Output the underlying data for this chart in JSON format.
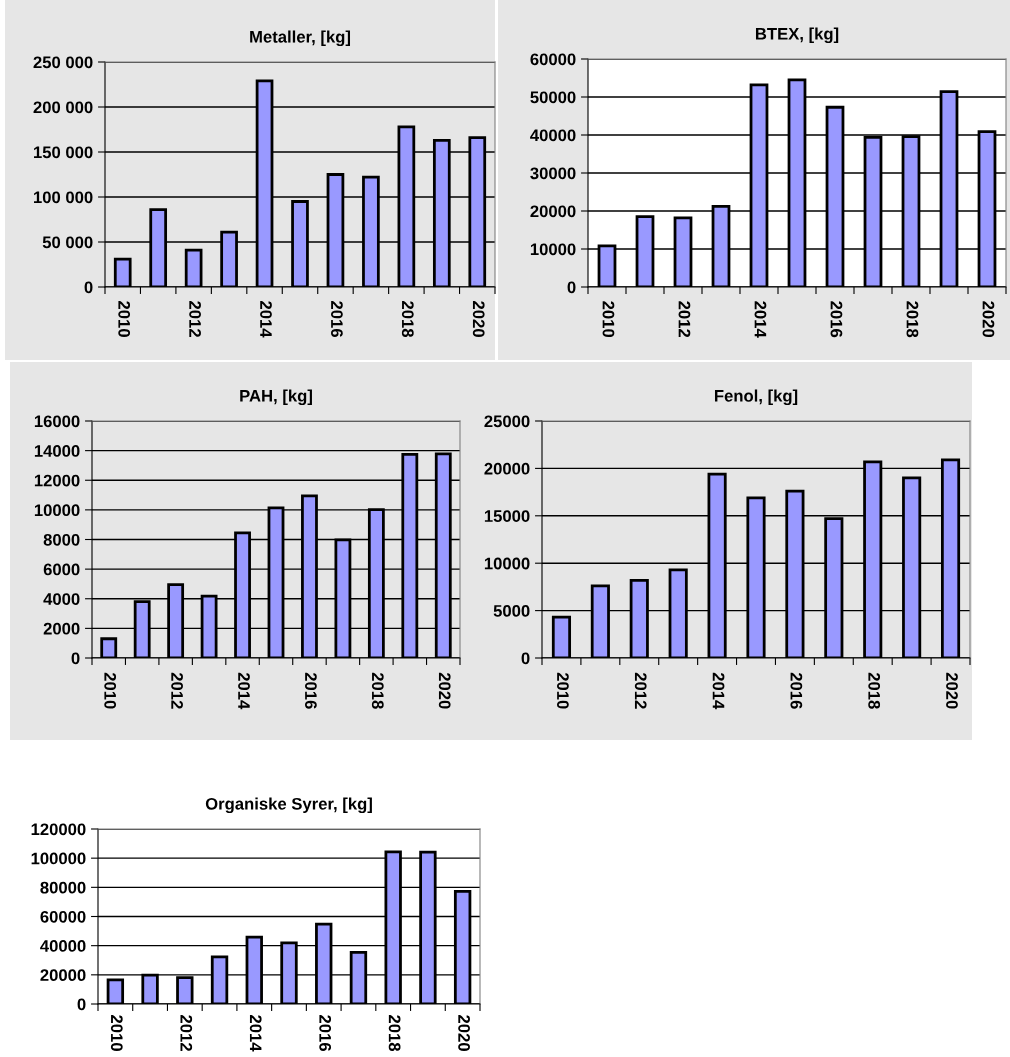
{
  "chart_data": [
    {
      "type": "bar",
      "title": "Metaller, [kg]",
      "categories": [
        "2010",
        null,
        "2012",
        null,
        "2014",
        null,
        "2016",
        null,
        "2018",
        null,
        "2020"
      ],
      "values": [
        31000,
        86000,
        41000,
        61000,
        229000,
        95000,
        125000,
        122000,
        178000,
        163000,
        166000
      ],
      "color": "#9999ff",
      "ylim": [
        0,
        250000
      ],
      "yticks": [
        0,
        {
          "value": 50000,
          "label": "50 000"
        },
        {
          "value": 100000,
          "label": "100 000"
        },
        {
          "value": 150000,
          "label": "150 000"
        },
        {
          "value": 200000,
          "label": "200 000"
        },
        {
          "value": 250000,
          "label": "250 000"
        }
      ],
      "grid": "y",
      "legend": false
    },
    {
      "type": "bar",
      "title": "BTEX, [kg]",
      "categories": [
        "2010",
        null,
        "2012",
        null,
        "2014",
        null,
        "2016",
        null,
        "2018",
        null,
        "2020"
      ],
      "values": [
        10800,
        18500,
        18200,
        21200,
        53200,
        54500,
        47300,
        39400,
        39600,
        51400,
        40900
      ],
      "color": "#9999ff",
      "ylim": [
        0,
        60000
      ],
      "yticks": [
        0,
        10000,
        20000,
        30000,
        40000,
        50000,
        60000
      ],
      "grid": "y",
      "legend": false
    },
    {
      "type": "bar",
      "title": "PAH, [kg]",
      "categories": [
        "2010",
        null,
        "2012",
        null,
        "2014",
        null,
        "2016",
        null,
        "2018",
        null,
        "2020"
      ],
      "values": [
        1300,
        3800,
        4950,
        4170,
        8450,
        10130,
        10950,
        7970,
        10020,
        13740,
        13780
      ],
      "color": "#9999ff",
      "ylim": [
        0,
        16000
      ],
      "yticks": [
        0,
        2000,
        4000,
        6000,
        8000,
        10000,
        12000,
        14000,
        16000
      ],
      "grid": "y",
      "legend": false
    },
    {
      "type": "bar",
      "title": "Fenol, [kg]",
      "categories": [
        "2010",
        null,
        "2012",
        null,
        "2014",
        null,
        "2016",
        null,
        "2018",
        null,
        "2020"
      ],
      "values": [
        4300,
        7600,
        8200,
        9300,
        19400,
        16900,
        17600,
        14700,
        20700,
        19000,
        20900
      ],
      "color": "#9999ff",
      "ylim": [
        0,
        25000
      ],
      "yticks": [
        0,
        5000,
        10000,
        15000,
        20000,
        25000
      ],
      "grid": "y",
      "legend": false
    },
    {
      "type": "bar",
      "title": "Organiske Syrer, [kg]",
      "categories": [
        "2010",
        null,
        "2012",
        null,
        "2014",
        null,
        "2016",
        null,
        "2018",
        null,
        "2020"
      ],
      "values": [
        16600,
        19800,
        18100,
        32300,
        45800,
        41900,
        54700,
        35400,
        104300,
        104100,
        77300
      ],
      "color": "#9999ff",
      "ylim": [
        0,
        120000
      ],
      "yticks": [
        0,
        20000,
        40000,
        60000,
        80000,
        100000,
        120000
      ],
      "grid": "y",
      "legend": false
    }
  ]
}
